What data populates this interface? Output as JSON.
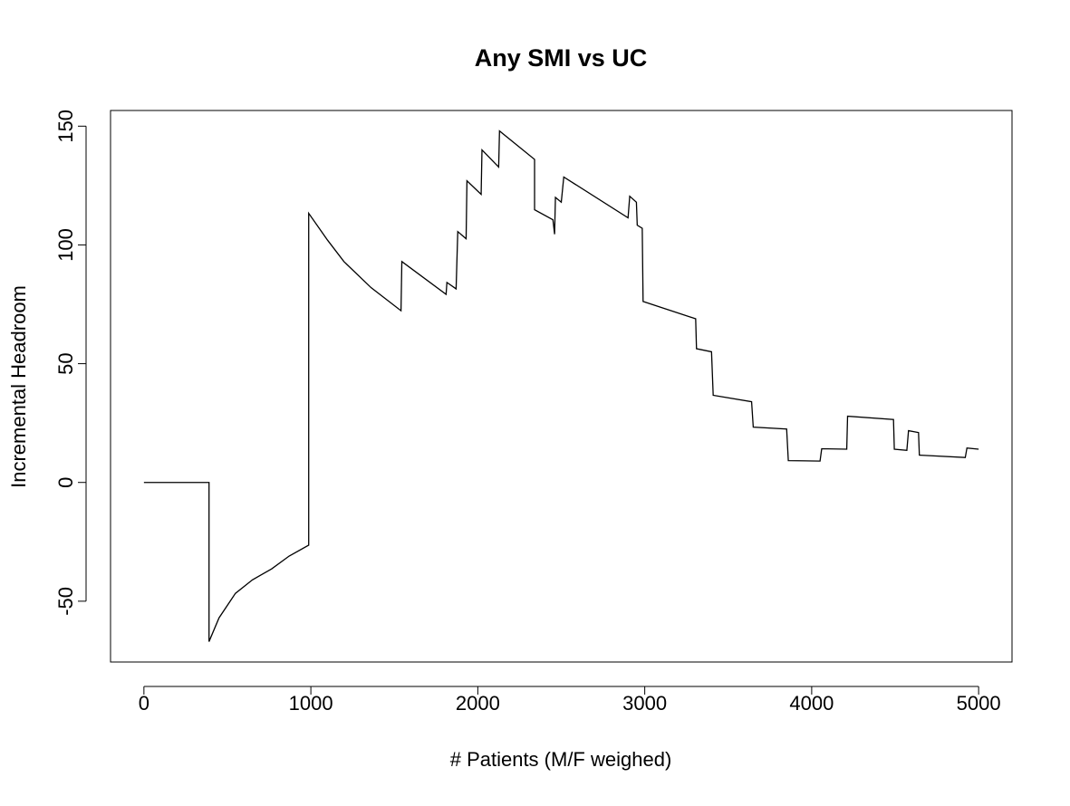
{
  "chart_data": {
    "type": "line",
    "title": "Any SMI vs UC",
    "x_label": "# Patients (M/F weighed)",
    "y_label": "Incremental Headroom",
    "xlim": [
      -200,
      5200
    ],
    "ylim": [
      -75.6,
      156.6
    ],
    "xticks": [
      0,
      1000,
      2000,
      3000,
      4000,
      5000
    ],
    "yticks": [
      -50,
      0,
      50,
      100,
      150
    ],
    "series": [
      {
        "name": "Any SMI vs UC",
        "color": "#000000",
        "x": [
          0,
          390,
          390,
          450,
          548,
          650,
          765,
          870,
          987,
          987,
          1100,
          1198,
          1361,
          1540,
          1545,
          1810,
          1815,
          1870,
          1880,
          1930,
          1935,
          2020,
          2025,
          2125,
          2130,
          2340,
          2340,
          2450,
          2460,
          2465,
          2500,
          2515,
          2900,
          2910,
          2950,
          2955,
          2985,
          2990,
          3305,
          3310,
          3400,
          3410,
          3640,
          3650,
          3850,
          3860,
          4050,
          4060,
          4210,
          4215,
          4490,
          4495,
          4570,
          4580,
          4640,
          4645,
          4920,
          4930,
          5000
        ],
        "values": [
          0,
          0,
          -67,
          -57,
          -46.7,
          -41,
          -36.4,
          -31,
          -26.4,
          113.3,
          102,
          93,
          82,
          72.3,
          93,
          79.2,
          84.2,
          81.5,
          105.6,
          102.6,
          127,
          121.3,
          140,
          132.8,
          148,
          136,
          114.8,
          110.6,
          104.5,
          120,
          118,
          128.6,
          111.4,
          120.5,
          118,
          108.3,
          107,
          76.2,
          68.9,
          56.3,
          55,
          36.7,
          34,
          23.3,
          22.5,
          9.2,
          9,
          14.2,
          14,
          27.9,
          26.5,
          14,
          13.5,
          21.8,
          21,
          11.5,
          10.5,
          14.5,
          14
        ]
      }
    ]
  }
}
